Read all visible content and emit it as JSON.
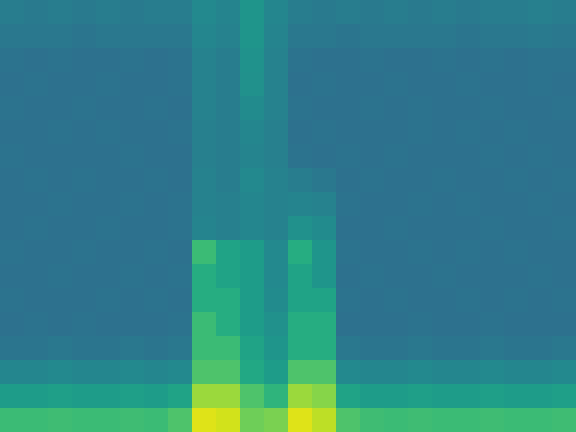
{
  "chart_data": {
    "type": "heatmap",
    "tick_labels": false,
    "color_range": [
      0,
      1
    ],
    "cells": [
      [
        0.42,
        0.41,
        0.42,
        0.41,
        0.42,
        0.41,
        0.42,
        0.42,
        0.47,
        0.45,
        0.52,
        0.46,
        0.42,
        0.41,
        0.42,
        0.41,
        0.42,
        0.41,
        0.42,
        0.41,
        0.42,
        0.42,
        0.43,
        0.42
      ],
      [
        0.4,
        0.4,
        0.4,
        0.39,
        0.4,
        0.4,
        0.4,
        0.4,
        0.46,
        0.44,
        0.52,
        0.45,
        0.4,
        0.4,
        0.39,
        0.4,
        0.4,
        0.4,
        0.4,
        0.39,
        0.4,
        0.4,
        0.41,
        0.4
      ],
      [
        0.38,
        0.37,
        0.38,
        0.37,
        0.37,
        0.38,
        0.37,
        0.38,
        0.44,
        0.42,
        0.51,
        0.44,
        0.38,
        0.37,
        0.37,
        0.38,
        0.37,
        0.37,
        0.38,
        0.37,
        0.38,
        0.37,
        0.38,
        0.38
      ],
      [
        0.37,
        0.38,
        0.37,
        0.37,
        0.38,
        0.37,
        0.37,
        0.38,
        0.44,
        0.42,
        0.5,
        0.44,
        0.37,
        0.38,
        0.37,
        0.37,
        0.38,
        0.37,
        0.37,
        0.38,
        0.37,
        0.37,
        0.38,
        0.37
      ],
      [
        0.38,
        0.37,
        0.37,
        0.38,
        0.37,
        0.37,
        0.38,
        0.37,
        0.44,
        0.42,
        0.48,
        0.44,
        0.38,
        0.37,
        0.37,
        0.38,
        0.37,
        0.38,
        0.37,
        0.37,
        0.38,
        0.37,
        0.37,
        0.38
      ],
      [
        0.37,
        0.37,
        0.38,
        0.37,
        0.38,
        0.37,
        0.37,
        0.38,
        0.43,
        0.42,
        0.46,
        0.43,
        0.37,
        0.38,
        0.37,
        0.37,
        0.37,
        0.38,
        0.37,
        0.38,
        0.37,
        0.38,
        0.37,
        0.37
      ],
      [
        0.38,
        0.37,
        0.37,
        0.37,
        0.37,
        0.38,
        0.37,
        0.37,
        0.43,
        0.42,
        0.45,
        0.43,
        0.38,
        0.37,
        0.38,
        0.37,
        0.38,
        0.37,
        0.37,
        0.37,
        0.38,
        0.37,
        0.38,
        0.37
      ],
      [
        0.37,
        0.38,
        0.37,
        0.38,
        0.37,
        0.37,
        0.38,
        0.37,
        0.44,
        0.42,
        0.47,
        0.44,
        0.42,
        0.4,
        0.37,
        0.38,
        0.37,
        0.37,
        0.38,
        0.37,
        0.37,
        0.38,
        0.37,
        0.38
      ],
      [
        0.37,
        0.37,
        0.38,
        0.37,
        0.37,
        0.38,
        0.37,
        0.38,
        0.44,
        0.43,
        0.46,
        0.44,
        0.45,
        0.44,
        0.38,
        0.37,
        0.37,
        0.38,
        0.37,
        0.38,
        0.37,
        0.37,
        0.38,
        0.37
      ],
      [
        0.37,
        0.38,
        0.37,
        0.37,
        0.38,
        0.37,
        0.37,
        0.38,
        0.45,
        0.43,
        0.46,
        0.44,
        0.5,
        0.48,
        0.37,
        0.37,
        0.38,
        0.37,
        0.37,
        0.37,
        0.38,
        0.37,
        0.37,
        0.38
      ],
      [
        0.38,
        0.37,
        0.37,
        0.38,
        0.37,
        0.37,
        0.38,
        0.37,
        0.68,
        0.58,
        0.55,
        0.47,
        0.62,
        0.52,
        0.38,
        0.37,
        0.37,
        0.38,
        0.37,
        0.38,
        0.37,
        0.38,
        0.37,
        0.37
      ],
      [
        0.37,
        0.37,
        0.38,
        0.37,
        0.37,
        0.38,
        0.37,
        0.38,
        0.62,
        0.58,
        0.55,
        0.47,
        0.58,
        0.52,
        0.37,
        0.38,
        0.37,
        0.37,
        0.38,
        0.37,
        0.37,
        0.37,
        0.38,
        0.37
      ],
      [
        0.38,
        0.37,
        0.37,
        0.37,
        0.38,
        0.37,
        0.38,
        0.37,
        0.62,
        0.62,
        0.55,
        0.48,
        0.58,
        0.58,
        0.38,
        0.37,
        0.38,
        0.37,
        0.37,
        0.38,
        0.37,
        0.38,
        0.37,
        0.38
      ],
      [
        0.37,
        0.38,
        0.37,
        0.38,
        0.37,
        0.37,
        0.37,
        0.38,
        0.68,
        0.62,
        0.55,
        0.5,
        0.62,
        0.62,
        0.37,
        0.37,
        0.37,
        0.38,
        0.37,
        0.37,
        0.38,
        0.37,
        0.37,
        0.37
      ],
      [
        0.39,
        0.39,
        0.4,
        0.39,
        0.39,
        0.4,
        0.39,
        0.4,
        0.68,
        0.68,
        0.58,
        0.52,
        0.62,
        0.62,
        0.4,
        0.39,
        0.39,
        0.4,
        0.39,
        0.39,
        0.4,
        0.39,
        0.39,
        0.4
      ],
      [
        0.46,
        0.46,
        0.47,
        0.46,
        0.46,
        0.47,
        0.46,
        0.47,
        0.72,
        0.72,
        0.6,
        0.55,
        0.72,
        0.72,
        0.47,
        0.46,
        0.46,
        0.47,
        0.46,
        0.46,
        0.47,
        0.46,
        0.46,
        0.47
      ],
      [
        0.55,
        0.55,
        0.56,
        0.55,
        0.55,
        0.56,
        0.55,
        0.58,
        0.85,
        0.85,
        0.72,
        0.65,
        0.85,
        0.82,
        0.58,
        0.55,
        0.55,
        0.56,
        0.55,
        0.55,
        0.56,
        0.55,
        0.55,
        0.56
      ],
      [
        0.68,
        0.68,
        0.69,
        0.68,
        0.68,
        0.69,
        0.68,
        0.72,
        0.95,
        0.93,
        0.78,
        0.8,
        0.95,
        0.9,
        0.72,
        0.69,
        0.68,
        0.69,
        0.68,
        0.68,
        0.69,
        0.68,
        0.68,
        0.69
      ]
    ]
  }
}
